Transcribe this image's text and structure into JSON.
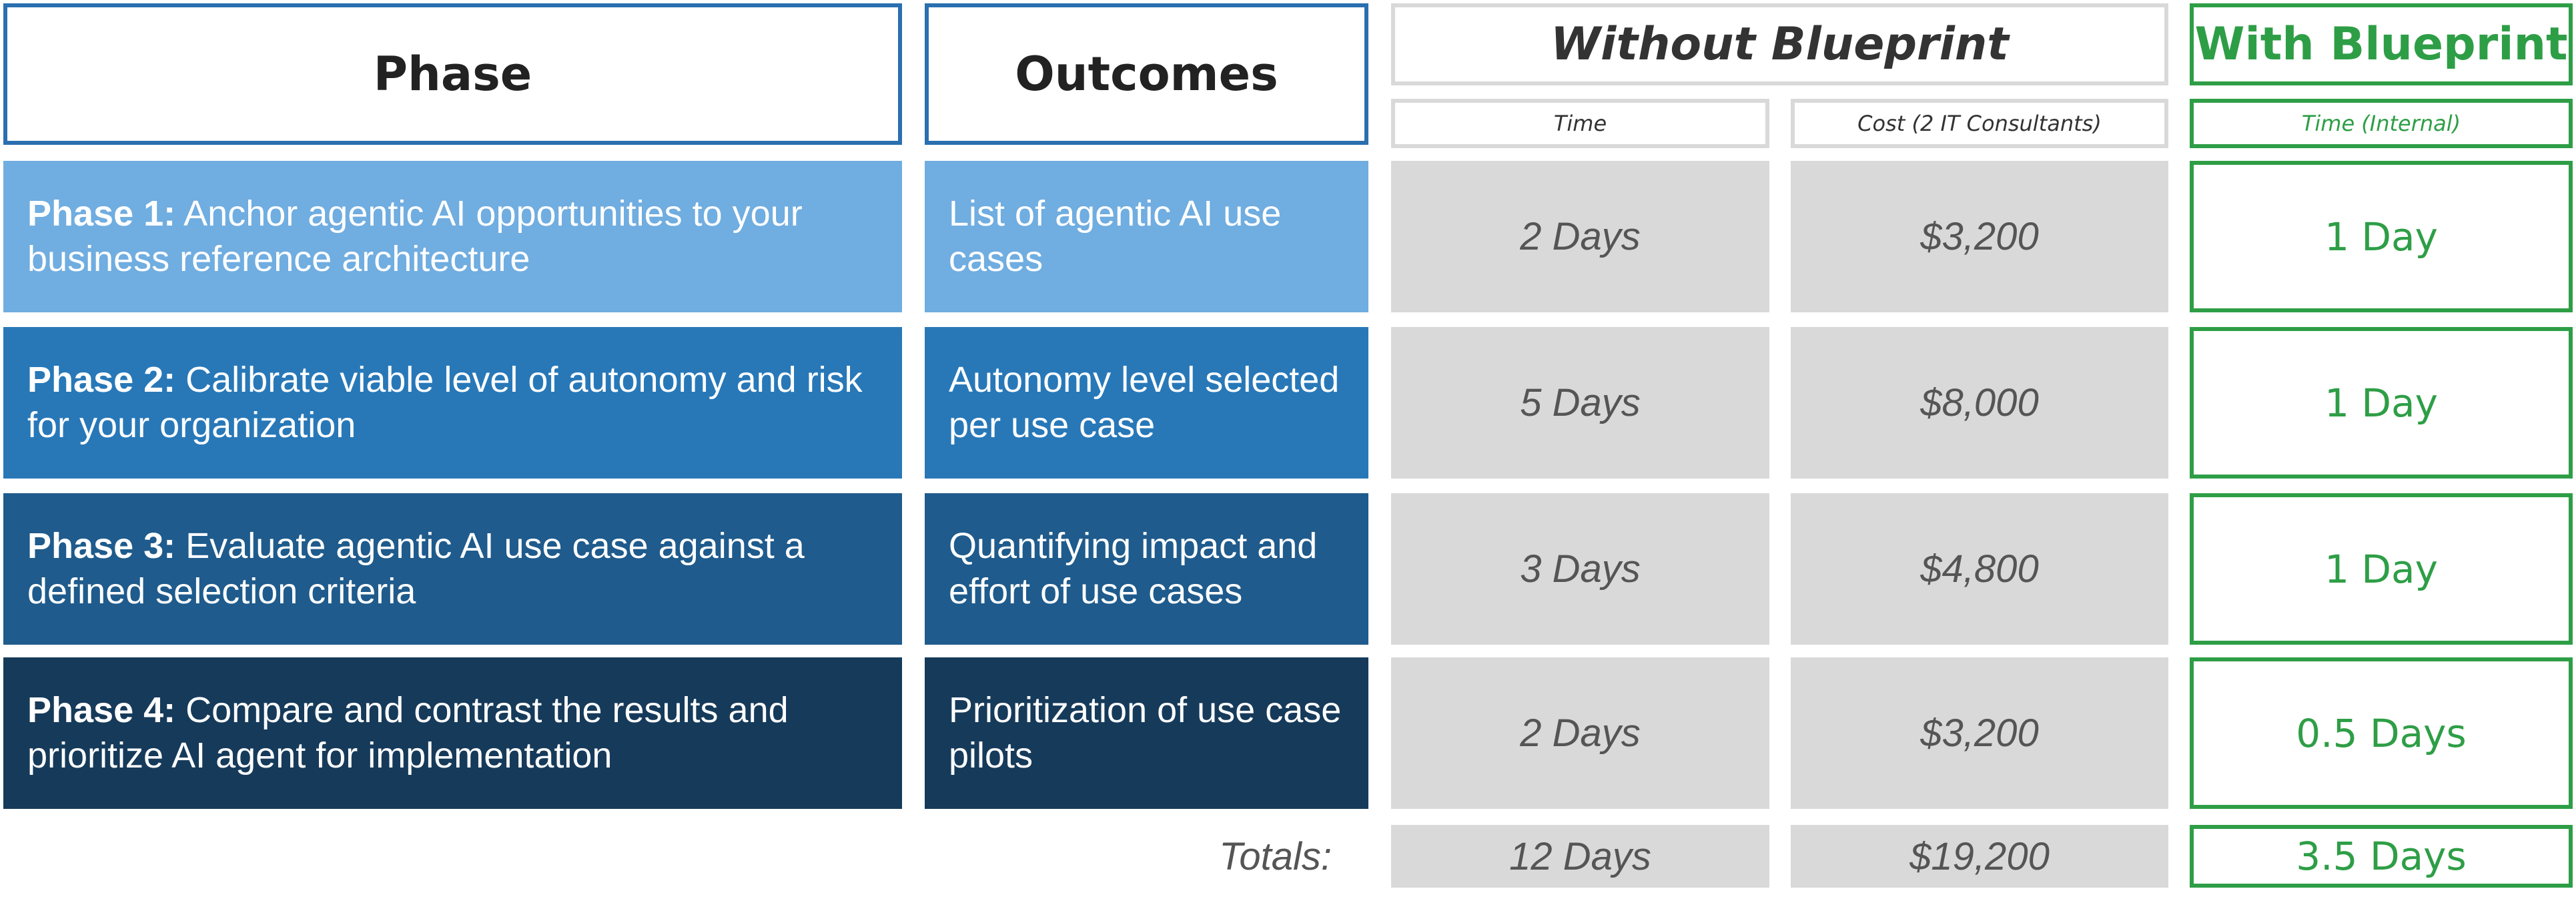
{
  "header": {
    "phase": "Phase",
    "outcomes": "Outcomes",
    "without": "Without Blueprint",
    "time": "Time",
    "cost": "Cost (2 IT Consultants)",
    "with": "With Blueprint",
    "time_internal": "Time (Internal)"
  },
  "rows": [
    {
      "phase_label": "Phase 1:",
      "phase_text": "Anchor agentic AI opportunities to your business reference architecture",
      "outcome": "List of agentic AI use cases",
      "time": "2 Days",
      "cost": "$3,200",
      "with_time": "1 Day"
    },
    {
      "phase_label": "Phase 2:",
      "phase_text": "Calibrate viable level of autonomy and risk for your organization",
      "outcome": "Autonomy level selected per use case",
      "time": "5 Days",
      "cost": "$8,000",
      "with_time": "1 Day"
    },
    {
      "phase_label": "Phase 3:",
      "phase_text": "Evaluate agentic AI use case against a defined selection criteria",
      "outcome": "Quantifying impact and effort of use cases",
      "time": "3 Days",
      "cost": "$4,800",
      "with_time": "1 Day"
    },
    {
      "phase_label": "Phase 4:",
      "phase_text": "Compare and contrast the results and prioritize AI agent for implementation",
      "outcome": "Prioritization of use case pilots",
      "time": "2 Days",
      "cost": "$3,200",
      "with_time": "0.5 Days"
    }
  ],
  "totals": {
    "label": "Totals:",
    "time": "12 Days",
    "cost": "$19,200",
    "with_time": "3.5 Days"
  }
}
